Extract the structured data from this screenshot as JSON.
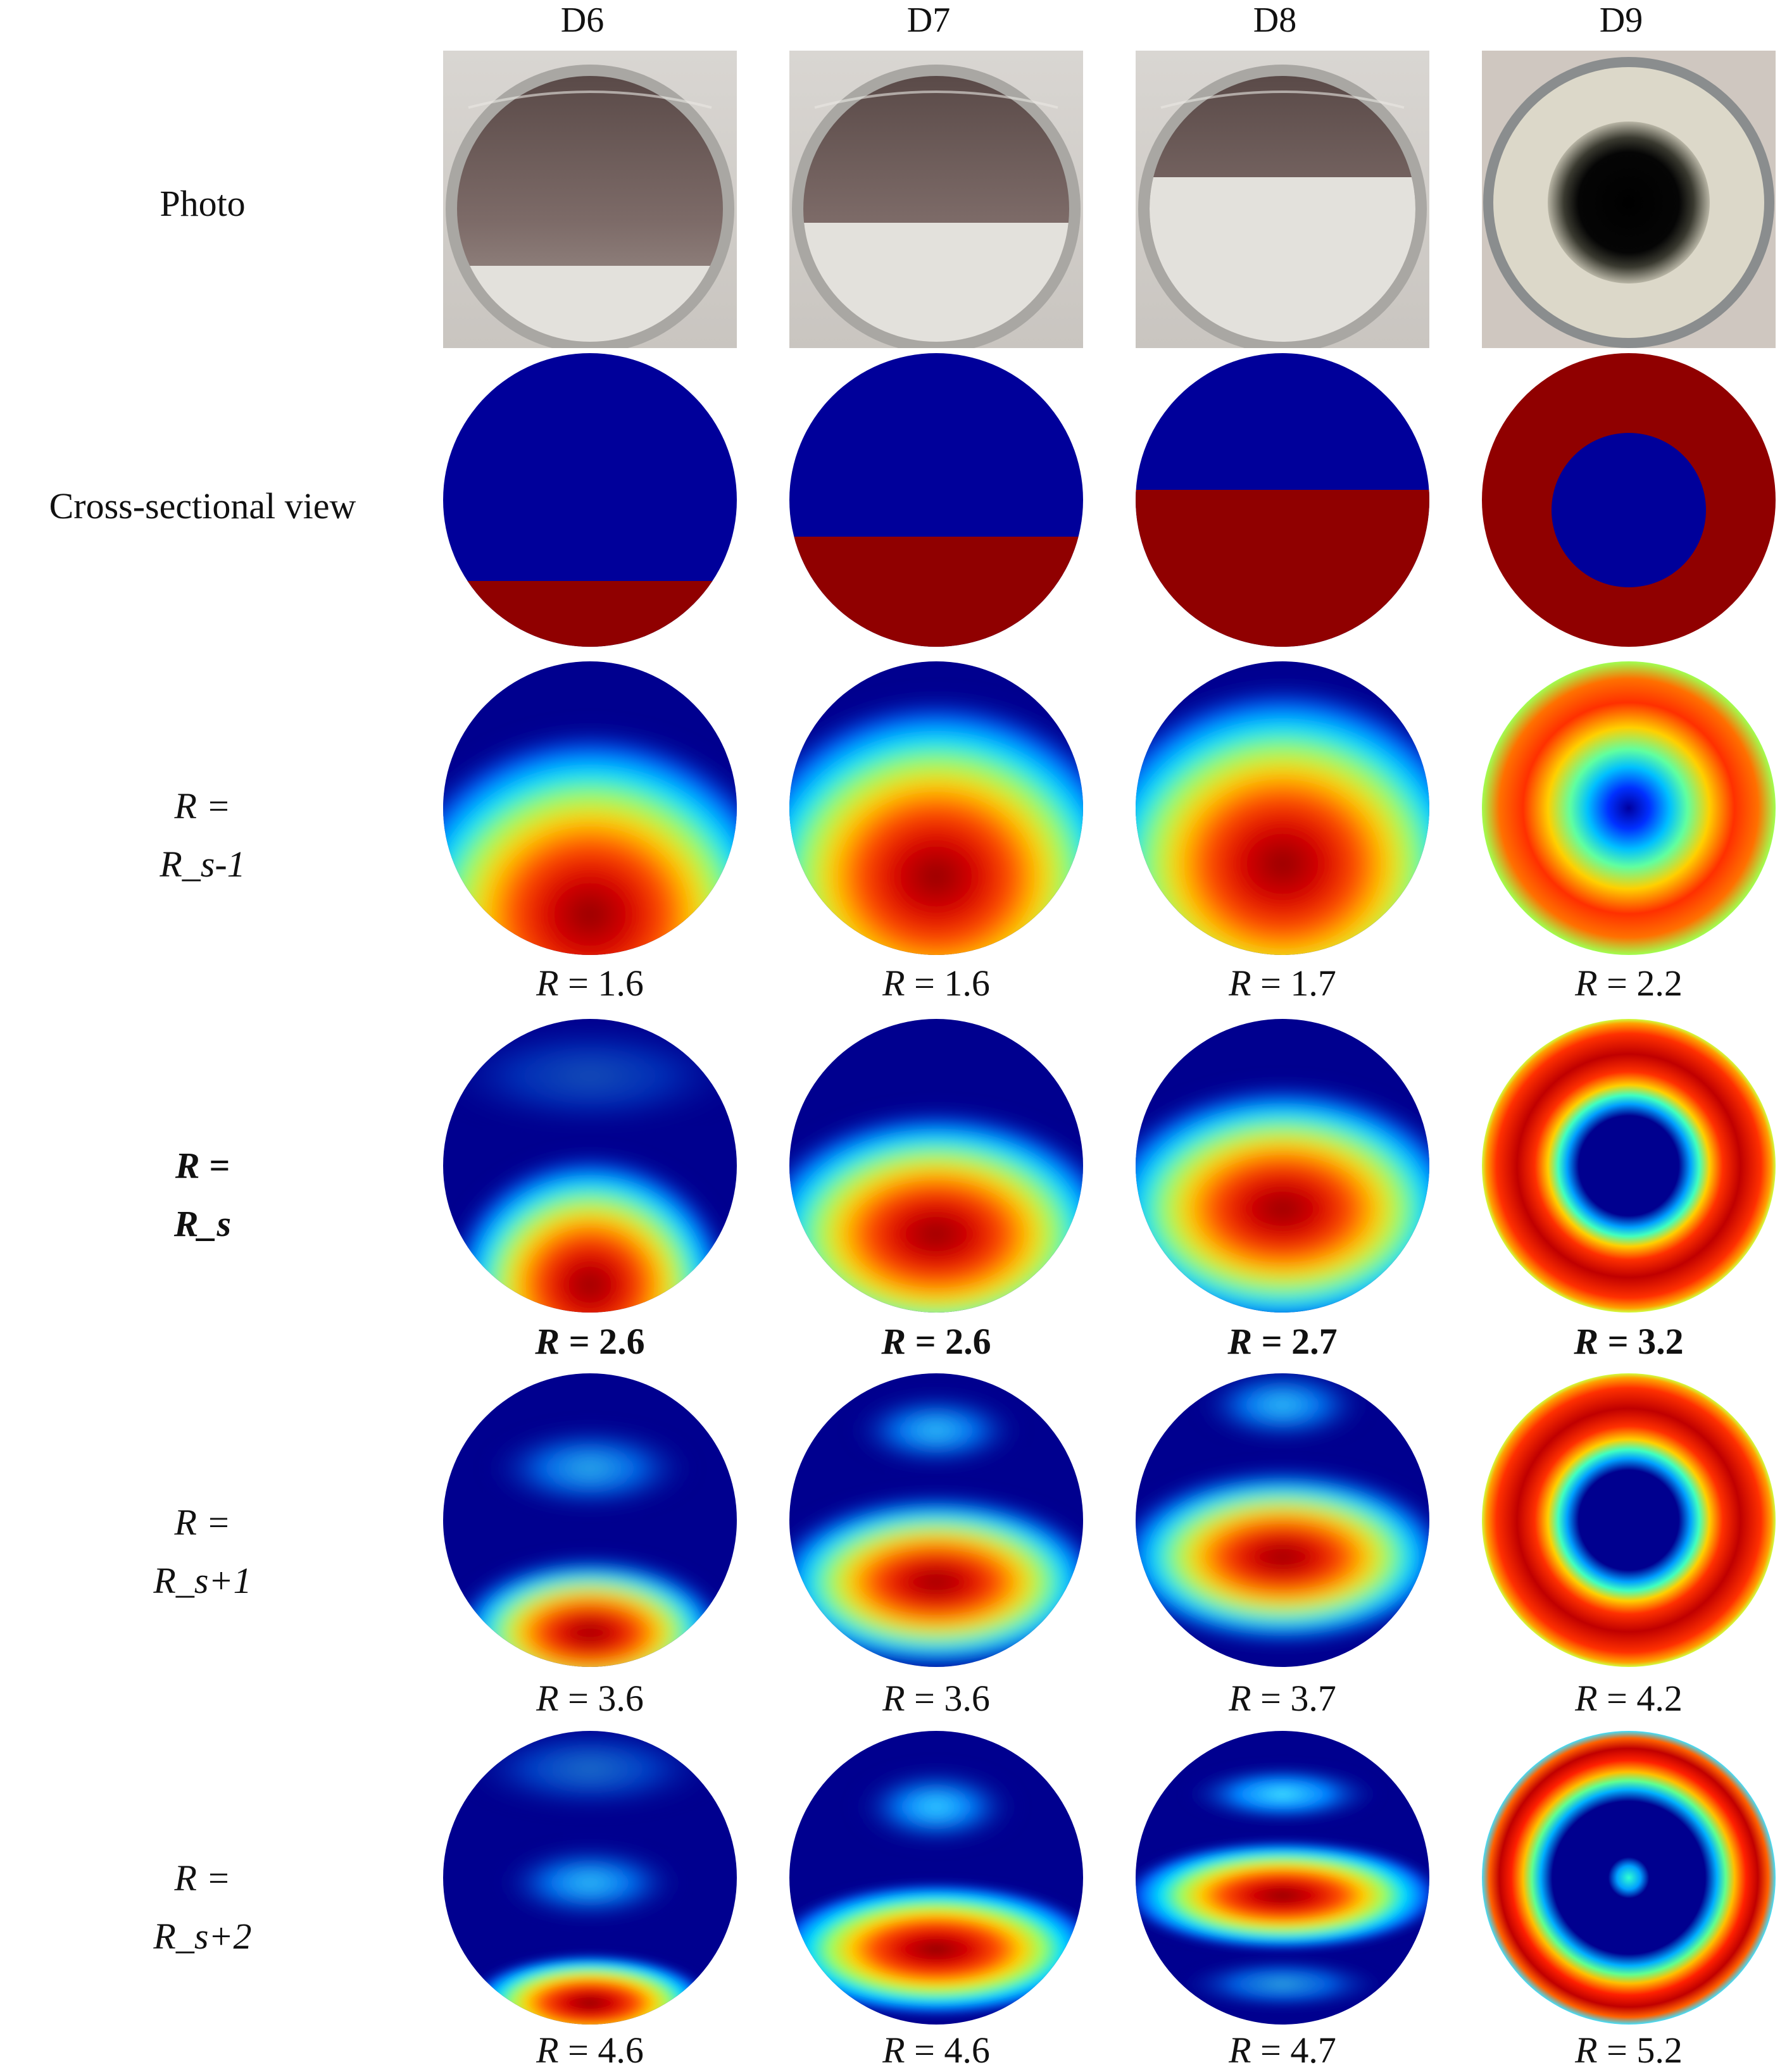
{
  "columns": [
    "D6",
    "D7",
    "D8",
    "D9"
  ],
  "rows": [
    {
      "label_line1": "",
      "label_line2": "Photo",
      "bold": false
    },
    {
      "label_line1": "",
      "label_line2": "Cross-sectional view",
      "bold": false
    },
    {
      "label_line1": "R =",
      "label_line2": "R_s-1",
      "bold": false
    },
    {
      "label_line1": "R =",
      "label_line2": "R_s",
      "bold": true
    },
    {
      "label_line1": "R =",
      "label_line2": "R_s+1",
      "bold": false
    },
    {
      "label_line1": "R =",
      "label_line2": "R_s+2",
      "bold": false
    }
  ],
  "captions": {
    "r_minus1": [
      "R = 1.6",
      "R = 1.6",
      "R = 1.7",
      "R = 2.2"
    ],
    "r_s": [
      "R = 2.6",
      "R = 2.6",
      "R = 2.7",
      "R = 3.2"
    ],
    "r_plus1": [
      "R = 3.6",
      "R = 3.6",
      "R = 3.7",
      "R = 4.2"
    ],
    "r_plus2": [
      "R = 4.6",
      "R = 4.6",
      "R = 4.7",
      "R = 5.2"
    ]
  },
  "colors": {
    "phase_low": "#00009a",
    "phase_high": "#900000",
    "jet_blue": "#00008f",
    "jet_red": "#d40000"
  },
  "cross_section_fill_fraction": [
    0.24,
    0.39,
    0.55,
    "annulus"
  ]
}
